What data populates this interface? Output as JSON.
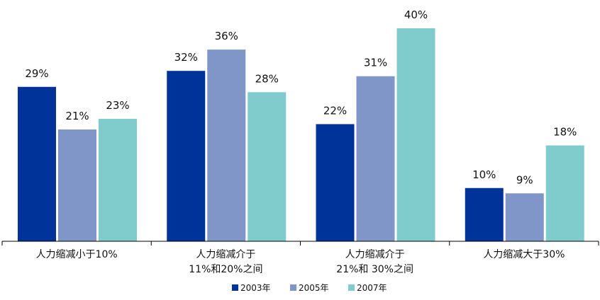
{
  "chart_data": {
    "type": "bar",
    "categories": [
      [
        "人力缩减小于10%"
      ],
      [
        "人力缩减介于",
        "11%和20%之间"
      ],
      [
        "人力缩减介于",
        "21%和  30%之间"
      ],
      [
        "人力缩减大于30%"
      ]
    ],
    "series": [
      {
        "name": "2003年",
        "color": "#003399",
        "values": [
          29,
          32,
          22,
          10
        ]
      },
      {
        "name": "2005年",
        "color": "#8096C9",
        "values": [
          21,
          36,
          31,
          9
        ]
      },
      {
        "name": "2007年",
        "color": "#80CCCC",
        "values": [
          23,
          28,
          40,
          18
        ]
      }
    ],
    "value_suffix": "%",
    "ylim": [
      0,
      40
    ],
    "grid": false,
    "legend_position": "bottom"
  }
}
